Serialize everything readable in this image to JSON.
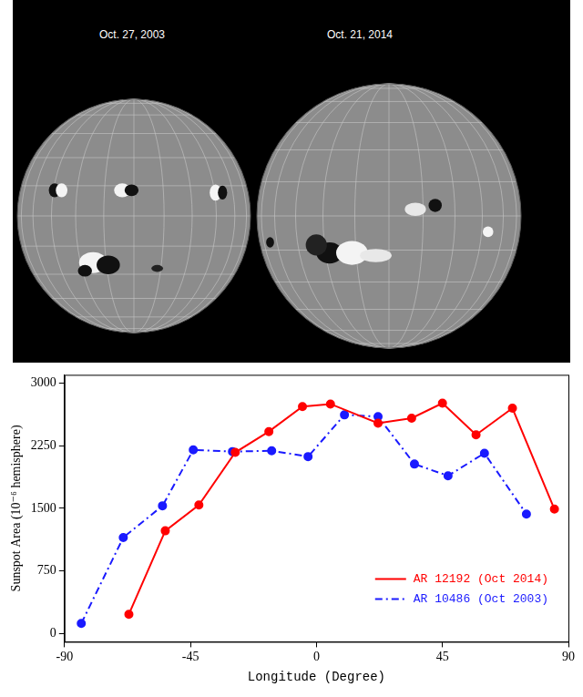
{
  "images": {
    "titles": [
      "Oct. 27, 2003",
      "Oct. 21, 2014"
    ]
  },
  "chart_data": {
    "type": "line",
    "xlabel": "Longitude (Degree)",
    "ylabel": "Sunspot Area (10⁻⁶ hemisphere)",
    "xlim": [
      -90,
      90
    ],
    "xticks": [
      -90,
      -45,
      0,
      45,
      90
    ],
    "ylim": [
      -100,
      3100
    ],
    "yticks": [
      0,
      750,
      1500,
      2250,
      3000
    ],
    "grid": false,
    "legend": "lower right",
    "series": [
      {
        "name": "AR 12192 (Oct 2014)",
        "color": "#ff0000",
        "marker": "circle",
        "line_style": "solid",
        "x": [
          -67,
          -54,
          -42,
          -29,
          -17,
          -5,
          5,
          22,
          34,
          45,
          57,
          70,
          85
        ],
        "values": [
          230,
          1230,
          1540,
          2170,
          2420,
          2720,
          2750,
          2520,
          2580,
          2760,
          2380,
          2700,
          1490
        ]
      },
      {
        "name": "AR 10486 (Oct 2003)",
        "color": "#1a1aff",
        "marker": "circle",
        "line_style": "dashdot",
        "x": [
          -84,
          -69,
          -55,
          -44,
          -30,
          -16,
          -3,
          10,
          22,
          35,
          47,
          60,
          75
        ],
        "values": [
          120,
          1150,
          1530,
          2200,
          2180,
          2190,
          2120,
          2620,
          2600,
          2030,
          1890,
          2160,
          1430
        ]
      }
    ]
  }
}
